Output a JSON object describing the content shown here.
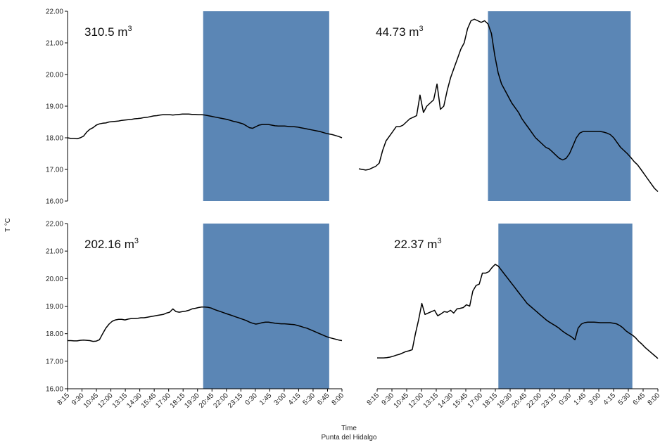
{
  "figure": {
    "ylabel": "T °C",
    "xlabel": "Time",
    "caption": "Punta del Hidalgo"
  },
  "chart_data": [
    {
      "type": "line",
      "annotation": "310.5 m",
      "annotation_sup": "3",
      "ylim": [
        16,
        22
      ],
      "yticks": [
        "16.00",
        "17.00",
        "18.00",
        "19.00",
        "20.00",
        "21.00",
        "22.00"
      ],
      "shaded_index_range": [
        42.5,
        82
      ],
      "shade_color": "#5b86b5",
      "series": [
        {
          "values": [
            18.0,
            17.98,
            17.98,
            17.97,
            18.0,
            18.05,
            18.18,
            18.27,
            18.32,
            18.4,
            18.44,
            18.46,
            18.47,
            18.5,
            18.51,
            18.52,
            18.53,
            18.55,
            18.56,
            18.57,
            18.58,
            18.6,
            18.61,
            18.62,
            18.64,
            18.65,
            18.67,
            18.69,
            18.7,
            18.72,
            18.73,
            18.73,
            18.73,
            18.72,
            18.73,
            18.74,
            18.75,
            18.75,
            18.75,
            18.74,
            18.74,
            18.73,
            18.73,
            18.72,
            18.7,
            18.68,
            18.66,
            18.64,
            18.62,
            18.6,
            18.58,
            18.55,
            18.52,
            18.5,
            18.47,
            18.44,
            18.38,
            18.32,
            18.3,
            18.35,
            18.4,
            18.42,
            18.42,
            18.42,
            18.4,
            18.38,
            18.37,
            18.37,
            18.37,
            18.36,
            18.35,
            18.35,
            18.34,
            18.32,
            18.3,
            18.28,
            18.26,
            18.24,
            18.22,
            18.2,
            18.17,
            18.14,
            18.12,
            18.1,
            18.07,
            18.04,
            18.0
          ]
        }
      ]
    },
    {
      "type": "line",
      "annotation": "44.73 m",
      "annotation_sup": "3",
      "ylim": [
        16,
        22
      ],
      "yticks": [],
      "shaded_index_range": [
        38,
        80
      ],
      "shade_color": "#5b86b5",
      "series": [
        {
          "values": [
            17.02,
            17.0,
            16.98,
            17.0,
            17.05,
            17.1,
            17.2,
            17.6,
            17.9,
            18.05,
            18.2,
            18.35,
            18.35,
            18.4,
            18.5,
            18.6,
            18.65,
            18.7,
            19.35,
            18.8,
            19.0,
            19.1,
            19.2,
            19.7,
            18.9,
            19.0,
            19.5,
            19.9,
            20.2,
            20.5,
            20.8,
            21.0,
            21.45,
            21.7,
            21.75,
            21.7,
            21.65,
            21.7,
            21.6,
            21.3,
            20.6,
            20.05,
            19.7,
            19.5,
            19.3,
            19.1,
            18.95,
            18.8,
            18.6,
            18.45,
            18.3,
            18.15,
            18.0,
            17.9,
            17.8,
            17.7,
            17.65,
            17.55,
            17.45,
            17.35,
            17.3,
            17.35,
            17.5,
            17.75,
            18.0,
            18.15,
            18.2,
            18.2,
            18.2,
            18.2,
            18.2,
            18.2,
            18.18,
            18.15,
            18.1,
            18.0,
            17.85,
            17.7,
            17.6,
            17.5,
            17.38,
            17.25,
            17.15,
            17.0,
            16.85,
            16.7,
            16.55,
            16.4,
            16.3
          ]
        }
      ]
    },
    {
      "type": "line",
      "annotation": "202.16 m",
      "annotation_sup": "3",
      "ylim": [
        16,
        22
      ],
      "yticks": [
        "16.00",
        "17.00",
        "18.00",
        "19.00",
        "20.00",
        "21.00",
        "22.00"
      ],
      "xticks": [
        "8:15",
        "9:30",
        "10:45",
        "12:00",
        "13:15",
        "14:30",
        "15:45",
        "17:00",
        "18:15",
        "19:30",
        "20:45",
        "22:00",
        "23:15",
        "0:30",
        "1:45",
        "3:00",
        "4:15",
        "5:30",
        "6:45",
        "8:00"
      ],
      "shaded_index_range": [
        42.5,
        82
      ],
      "shade_color": "#5b86b5",
      "series": [
        {
          "values": [
            17.75,
            17.75,
            17.74,
            17.74,
            17.76,
            17.77,
            17.76,
            17.75,
            17.72,
            17.73,
            17.78,
            18.0,
            18.2,
            18.35,
            18.45,
            18.5,
            18.52,
            18.52,
            18.5,
            18.53,
            18.55,
            18.55,
            18.56,
            18.58,
            18.58,
            18.6,
            18.62,
            18.64,
            18.66,
            18.68,
            18.7,
            18.75,
            18.78,
            18.9,
            18.8,
            18.78,
            18.8,
            18.82,
            18.85,
            18.9,
            18.92,
            18.95,
            18.97,
            18.97,
            18.96,
            18.93,
            18.88,
            18.84,
            18.8,
            18.76,
            18.72,
            18.68,
            18.64,
            18.6,
            18.56,
            18.52,
            18.48,
            18.42,
            18.38,
            18.35,
            18.37,
            18.4,
            18.42,
            18.42,
            18.4,
            18.38,
            18.37,
            18.36,
            18.36,
            18.35,
            18.34,
            18.33,
            18.3,
            18.27,
            18.23,
            18.2,
            18.15,
            18.1,
            18.05,
            18.0,
            17.95,
            17.9,
            17.86,
            17.83,
            17.8,
            17.77,
            17.75
          ]
        }
      ]
    },
    {
      "type": "line",
      "annotation": "22.37 m",
      "annotation_sup": "3",
      "ylim": [
        16,
        22
      ],
      "yticks": [],
      "xticks": [
        "8:15",
        "9:30",
        "10:45",
        "12:00",
        "13:15",
        "14:30",
        "15:45",
        "17:00",
        "18:15",
        "19:30",
        "20:45",
        "22:00",
        "23:15",
        "0:30",
        "1:45",
        "3:00",
        "4:15",
        "5:30",
        "6:45",
        "8:00"
      ],
      "shaded_index_range": [
        38,
        80
      ],
      "shade_color": "#5b86b5",
      "series": [
        {
          "values": [
            17.12,
            17.12,
            17.12,
            17.13,
            17.15,
            17.18,
            17.22,
            17.25,
            17.3,
            17.35,
            17.38,
            17.42,
            18.0,
            18.5,
            19.1,
            18.7,
            18.75,
            18.8,
            18.85,
            18.65,
            18.72,
            18.8,
            18.78,
            18.85,
            18.75,
            18.9,
            18.92,
            18.95,
            19.05,
            19.0,
            19.55,
            19.75,
            19.8,
            20.2,
            20.2,
            20.25,
            20.4,
            20.52,
            20.45,
            20.3,
            20.15,
            20.0,
            19.85,
            19.7,
            19.55,
            19.4,
            19.25,
            19.1,
            19.0,
            18.9,
            18.8,
            18.7,
            18.6,
            18.5,
            18.42,
            18.35,
            18.28,
            18.2,
            18.1,
            18.02,
            17.95,
            17.88,
            17.78,
            18.2,
            18.35,
            18.4,
            18.42,
            18.42,
            18.42,
            18.41,
            18.4,
            18.4,
            18.4,
            18.4,
            18.38,
            18.36,
            18.3,
            18.22,
            18.1,
            18.02,
            17.95,
            17.85,
            17.72,
            17.62,
            17.5,
            17.4,
            17.3,
            17.2,
            17.1
          ]
        }
      ]
    }
  ]
}
